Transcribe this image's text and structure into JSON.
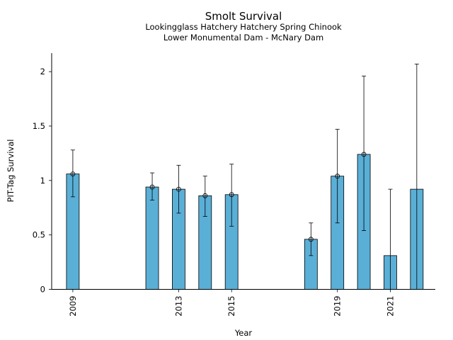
{
  "chart_data": {
    "type": "bar",
    "title": "Smolt Survival",
    "subtitle_lines": [
      "Lookingglass Hatchery Hatchery Spring Chinook",
      "Lower Monumental Dam - McNary Dam"
    ],
    "xlabel": "Year",
    "ylabel": "PIT-Tag Survival",
    "xlim": [
      2008.2,
      2022.7
    ],
    "ylim": [
      0,
      2.17
    ],
    "yticks": [
      0,
      0.5,
      1,
      1.5,
      2
    ],
    "ytick_labels": [
      "0",
      "0.5",
      "1",
      "1.5",
      "2"
    ],
    "xticks": [
      2009,
      2013,
      2015,
      2019,
      2021
    ],
    "xtick_labels": [
      "2009",
      "2013",
      "2015",
      "2019",
      "2021"
    ],
    "bar_color": "#5aafd7",
    "series": [
      {
        "name": "PIT-Tag Survival",
        "points": [
          {
            "year": 2009,
            "value": 1.06,
            "lower": 0.85,
            "upper": 1.28,
            "marker": true
          },
          {
            "year": 2012,
            "value": 0.94,
            "lower": 0.82,
            "upper": 1.07,
            "marker": true
          },
          {
            "year": 2013,
            "value": 0.92,
            "lower": 0.7,
            "upper": 1.14,
            "marker": true
          },
          {
            "year": 2014,
            "value": 0.86,
            "lower": 0.67,
            "upper": 1.04,
            "marker": true
          },
          {
            "year": 2015,
            "value": 0.87,
            "lower": 0.58,
            "upper": 1.15,
            "marker": true
          },
          {
            "year": 2018,
            "value": 0.46,
            "lower": 0.31,
            "upper": 0.61,
            "marker": true
          },
          {
            "year": 2019,
            "value": 1.04,
            "lower": 0.61,
            "upper": 1.47,
            "marker": true
          },
          {
            "year": 2020,
            "value": 1.24,
            "lower": 0.54,
            "upper": 1.96,
            "marker": true
          },
          {
            "year": 2021,
            "value": 0.31,
            "lower": 0.0,
            "upper": 0.92,
            "marker": false
          },
          {
            "year": 2022,
            "value": 0.92,
            "lower": 0.0,
            "upper": 2.07,
            "marker": false
          }
        ]
      }
    ]
  }
}
